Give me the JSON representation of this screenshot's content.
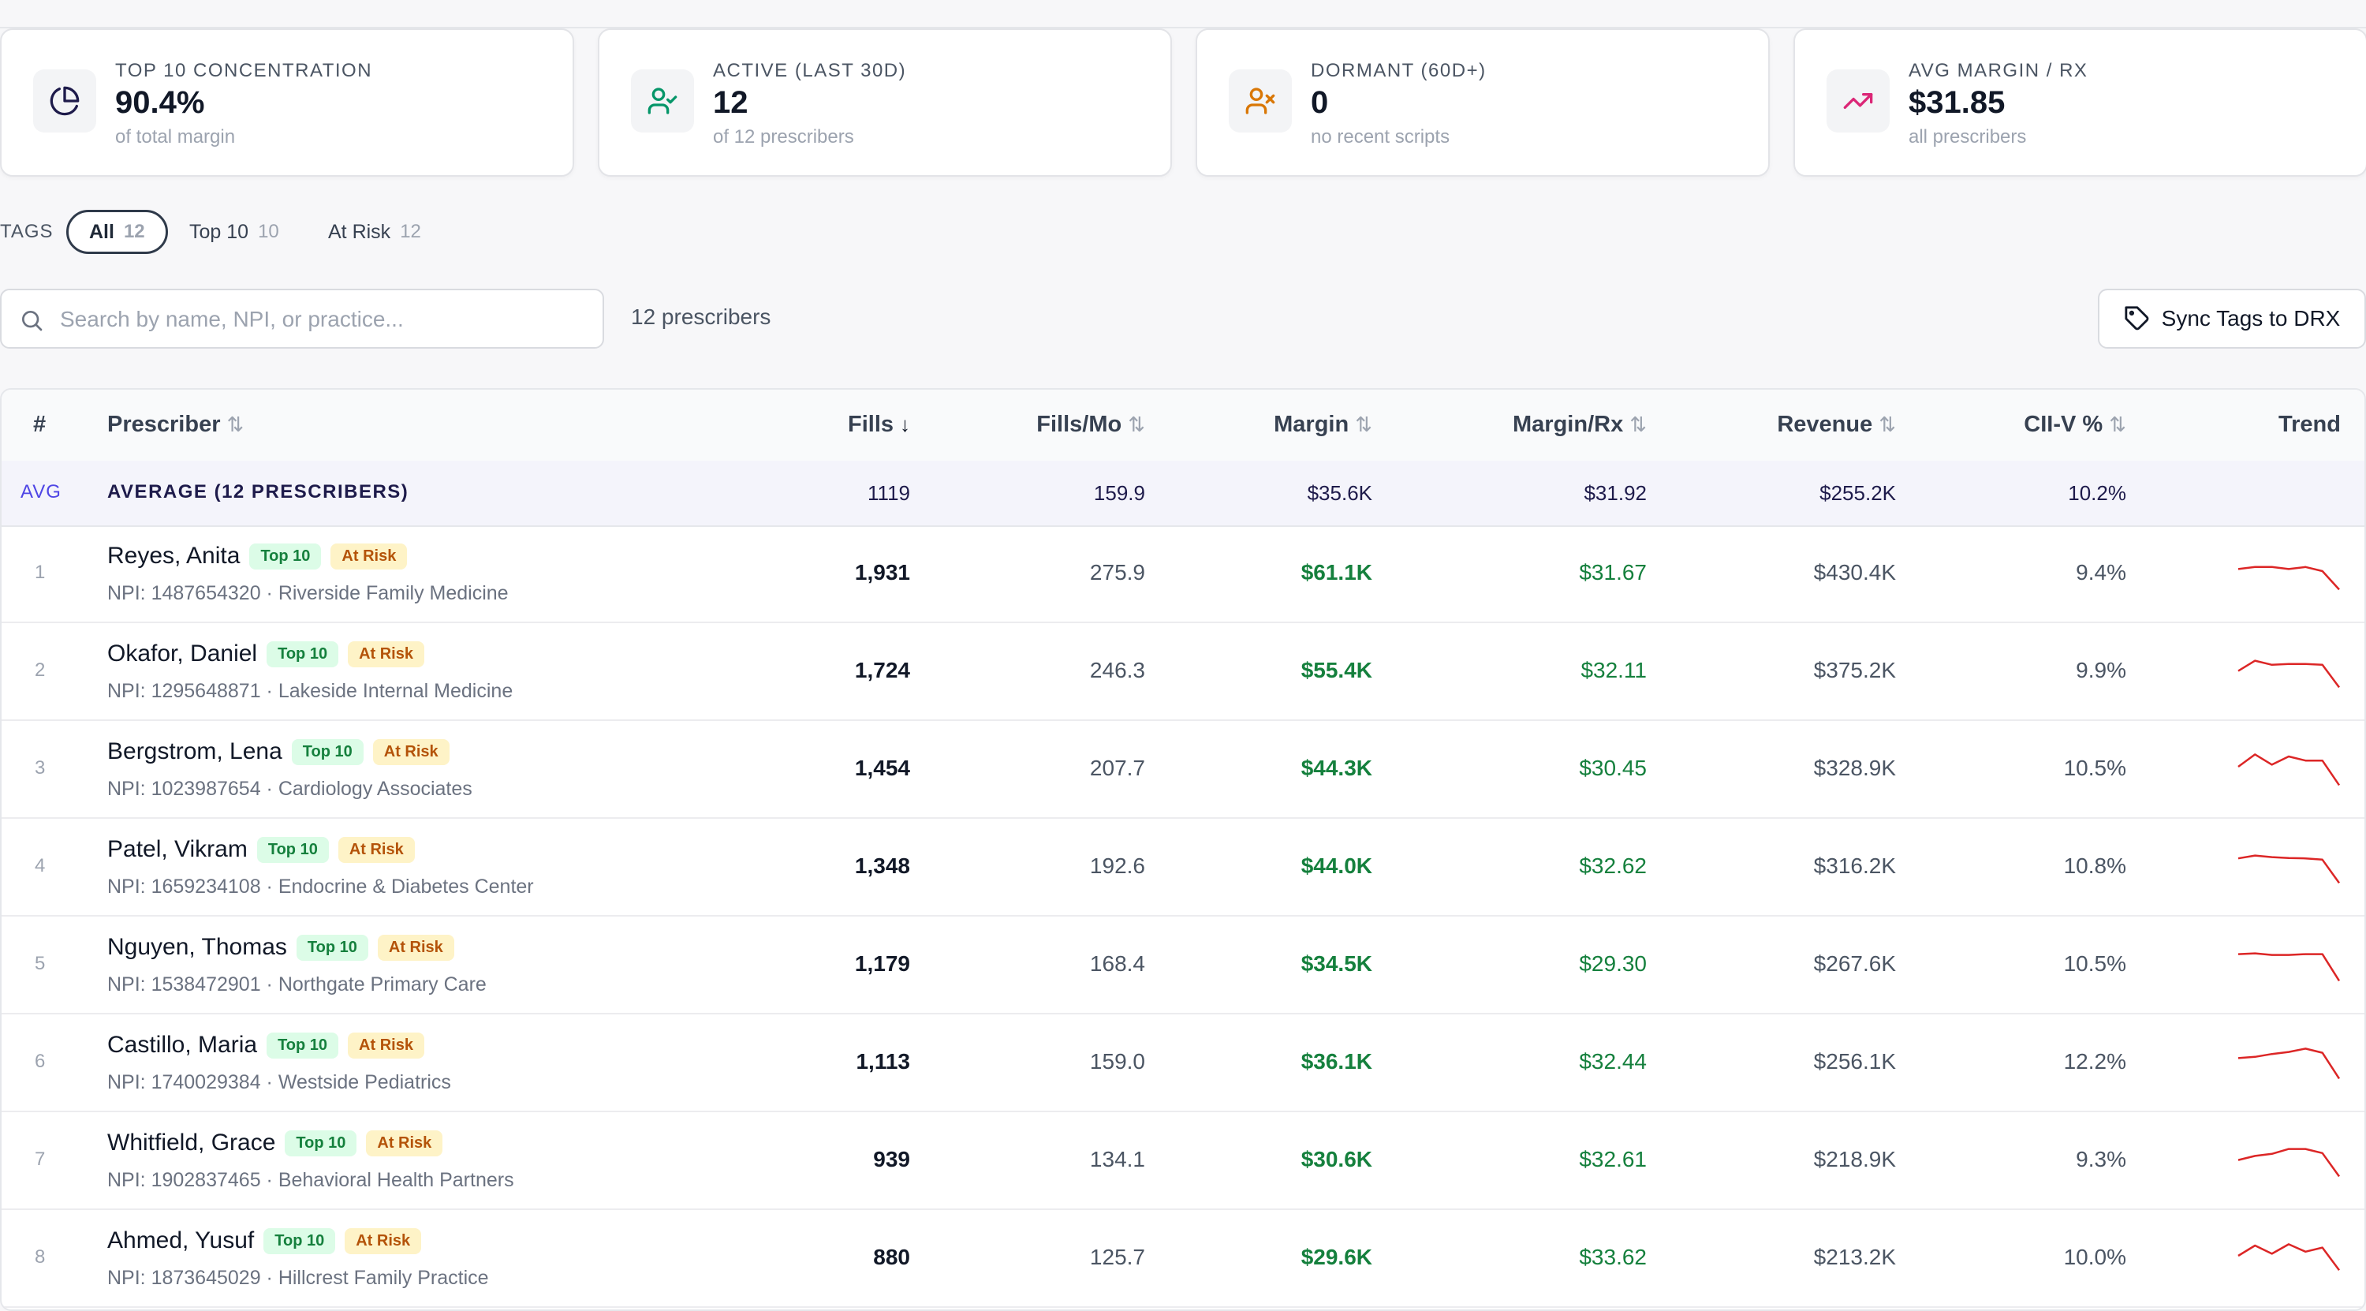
{
  "kpis": [
    {
      "label": "TOP 10 CONCENTRATION",
      "value": "90.4%",
      "sub": "of total margin",
      "icon": "pie-chart-icon",
      "color": "#1e1b4b"
    },
    {
      "label": "ACTIVE (LAST 30D)",
      "value": "12",
      "sub": "of 12 prescribers",
      "icon": "user-check-icon",
      "color": "#059669"
    },
    {
      "label": "DORMANT (60D+)",
      "value": "0",
      "sub": "no recent scripts",
      "icon": "user-x-icon",
      "color": "#d97706"
    },
    {
      "label": "AVG MARGIN / RX",
      "value": "$31.85",
      "sub": "all prescribers",
      "icon": "trending-up-icon",
      "color": "#db2777"
    }
  ],
  "tags": {
    "title": "TAGS",
    "items": [
      {
        "label": "All",
        "count": "12"
      },
      {
        "label": "Top 10",
        "count": "10"
      },
      {
        "label": "At Risk",
        "count": "12"
      }
    ]
  },
  "search": {
    "placeholder": "Search by name, NPI, or practice...",
    "value": ""
  },
  "count_label": "12 prescribers",
  "sync_button": "Sync Tags to DRX",
  "table": {
    "headers": {
      "idx": "#",
      "prescriber": "Prescriber",
      "fills": "Fills",
      "fills_mo": "Fills/Mo",
      "margin": "Margin",
      "margin_rx": "Margin/Rx",
      "revenue": "Revenue",
      "cii_v": "CII-V %",
      "trend": "Trend"
    },
    "sort_icons": {
      "active": "↓",
      "inactive": "⇅"
    },
    "avg": {
      "tag": "AVG",
      "label": "AVERAGE (12 PRESCRIBERS)",
      "fills": "1119",
      "fills_mo": "159.9",
      "margin": "$35.6K",
      "margin_rx": "$31.92",
      "revenue": "$255.2K",
      "cii_v": "10.2%"
    },
    "badges": {
      "top": "Top 10",
      "risk": "At Risk"
    },
    "rows": [
      {
        "idx": "1",
        "name": "Reyes, Anita",
        "npi": "NPI: 1487654320 · Riverside Family Medicine",
        "fills": "1,931",
        "fills_mo": "275.9",
        "margin": "$61.1K",
        "margin_rx": "$31.67",
        "revenue": "$430.4K",
        "cii_v": "9.4%",
        "trend": [
          0.55,
          0.6,
          0.6,
          0.55,
          0.6,
          0.5,
          0.05
        ]
      },
      {
        "idx": "2",
        "name": "Okafor, Daniel",
        "npi": "NPI: 1295648871 · Lakeside Internal Medicine",
        "fills": "1,724",
        "fills_mo": "246.3",
        "margin": "$55.4K",
        "margin_rx": "$32.11",
        "revenue": "$375.2K",
        "cii_v": "9.9%",
        "trend": [
          0.45,
          0.7,
          0.6,
          0.62,
          0.62,
          0.6,
          0.05
        ]
      },
      {
        "idx": "3",
        "name": "Bergstrom, Lena",
        "npi": "NPI: 1023987654 · Cardiology Associates",
        "fills": "1,454",
        "fills_mo": "207.7",
        "margin": "$44.3K",
        "margin_rx": "$30.45",
        "revenue": "$328.9K",
        "cii_v": "10.5%",
        "trend": [
          0.5,
          0.8,
          0.55,
          0.75,
          0.65,
          0.65,
          0.05
        ]
      },
      {
        "idx": "4",
        "name": "Patel, Vikram",
        "npi": "NPI: 1659234108 · Endocrine & Diabetes Center",
        "fills": "1,348",
        "fills_mo": "192.6",
        "margin": "$44.0K",
        "margin_rx": "$32.62",
        "revenue": "$316.2K",
        "cii_v": "10.8%",
        "trend": [
          0.65,
          0.72,
          0.68,
          0.66,
          0.65,
          0.62,
          0.05
        ]
      },
      {
        "idx": "5",
        "name": "Nguyen, Thomas",
        "npi": "NPI: 1538472901 · Northgate Primary Care",
        "fills": "1,179",
        "fills_mo": "168.4",
        "margin": "$34.5K",
        "margin_rx": "$29.30",
        "revenue": "$267.6K",
        "cii_v": "10.5%",
        "trend": [
          0.7,
          0.72,
          0.68,
          0.68,
          0.7,
          0.7,
          0.05
        ]
      },
      {
        "idx": "6",
        "name": "Castillo, Maria",
        "npi": "NPI: 1740029384 · Westside Pediatrics",
        "fills": "1,113",
        "fills_mo": "159.0",
        "margin": "$36.1K",
        "margin_rx": "$32.44",
        "revenue": "$256.1K",
        "cii_v": "12.2%",
        "trend": [
          0.55,
          0.58,
          0.65,
          0.7,
          0.78,
          0.68,
          0.05
        ]
      },
      {
        "idx": "7",
        "name": "Whitfield, Grace",
        "npi": "NPI: 1902837465 · Behavioral Health Partners",
        "fills": "939",
        "fills_mo": "134.1",
        "margin": "$30.6K",
        "margin_rx": "$32.61",
        "revenue": "$218.9K",
        "cii_v": "9.3%",
        "trend": [
          0.45,
          0.55,
          0.6,
          0.72,
          0.72,
          0.62,
          0.05
        ]
      },
      {
        "idx": "8",
        "name": "Ahmed, Yusuf",
        "npi": "NPI: 1873645029 · Hillcrest Family Practice",
        "fills": "880",
        "fills_mo": "125.7",
        "margin": "$29.6K",
        "margin_rx": "$33.62",
        "revenue": "$213.2K",
        "cii_v": "10.0%",
        "trend": [
          0.5,
          0.75,
          0.55,
          0.78,
          0.6,
          0.7,
          0.15
        ]
      }
    ]
  },
  "colors": {
    "accent": "#2f3a4a",
    "positive": "#15803d",
    "trend_line": "#dc2626",
    "badge_top": "#dcfce7",
    "badge_risk": "#fef3c7"
  }
}
